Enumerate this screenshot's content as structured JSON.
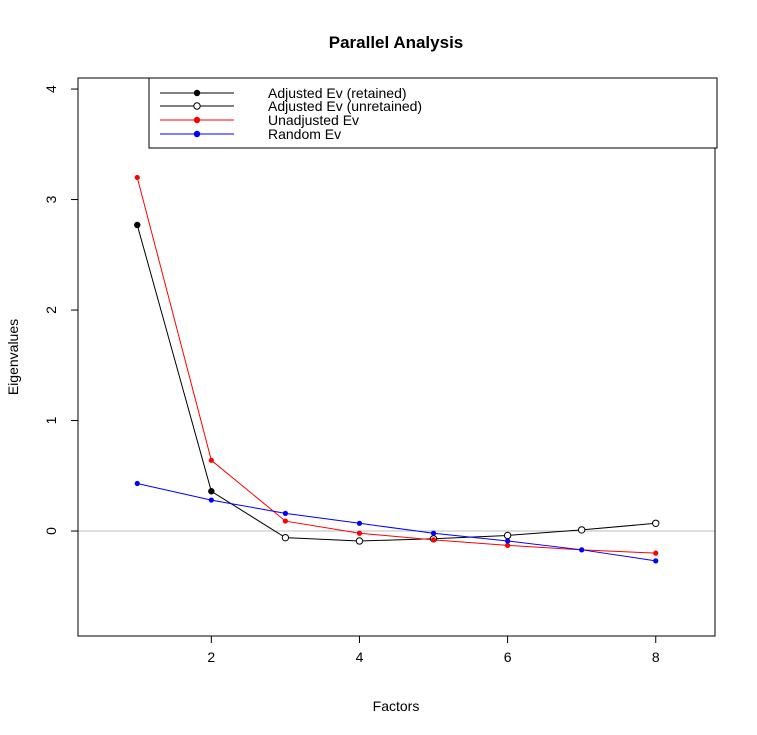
{
  "chart_data": {
    "type": "line",
    "title": "Parallel Analysis",
    "xlabel": "Factors",
    "ylabel": "Eigenvalues",
    "xlim": [
      0.2,
      8.8
    ],
    "ylim": [
      -0.95,
      4.1
    ],
    "x_ticks": [
      2,
      4,
      6,
      8
    ],
    "y_ticks": [
      0,
      1,
      2,
      3,
      4
    ],
    "x": [
      1,
      2,
      3,
      4,
      5,
      6,
      7,
      8
    ],
    "reference_line": {
      "y": 0,
      "color": "#bebebe"
    },
    "legend_position": "top",
    "series": [
      {
        "key": "adjusted",
        "values": [
          2.77,
          0.36,
          -0.06,
          -0.09,
          -0.07,
          -0.04,
          0.01,
          0.07
        ],
        "color": "#000000",
        "retained": [
          true,
          true,
          false,
          false,
          false,
          false,
          false,
          false
        ]
      },
      {
        "key": "unadjusted",
        "name": "Unadjusted Ev",
        "values": [
          3.2,
          0.64,
          0.09,
          -0.02,
          -0.08,
          -0.13,
          -0.17,
          -0.2
        ],
        "color": "#ff0000"
      },
      {
        "key": "random",
        "name": "Random Ev",
        "values": [
          0.43,
          0.28,
          0.16,
          0.07,
          -0.02,
          -0.09,
          -0.17,
          -0.27
        ],
        "color": "#0000ff"
      }
    ],
    "legend": [
      {
        "label": "Adjusted Ev (retained)",
        "color": "#000000",
        "marker": "filled"
      },
      {
        "label": "Adjusted Ev (unretained)",
        "color": "#000000",
        "marker": "open"
      },
      {
        "label": "Unadjusted Ev",
        "color": "#ff0000",
        "marker": "filled"
      },
      {
        "label": "Random Ev",
        "color": "#0000ff",
        "marker": "filled"
      }
    ]
  }
}
